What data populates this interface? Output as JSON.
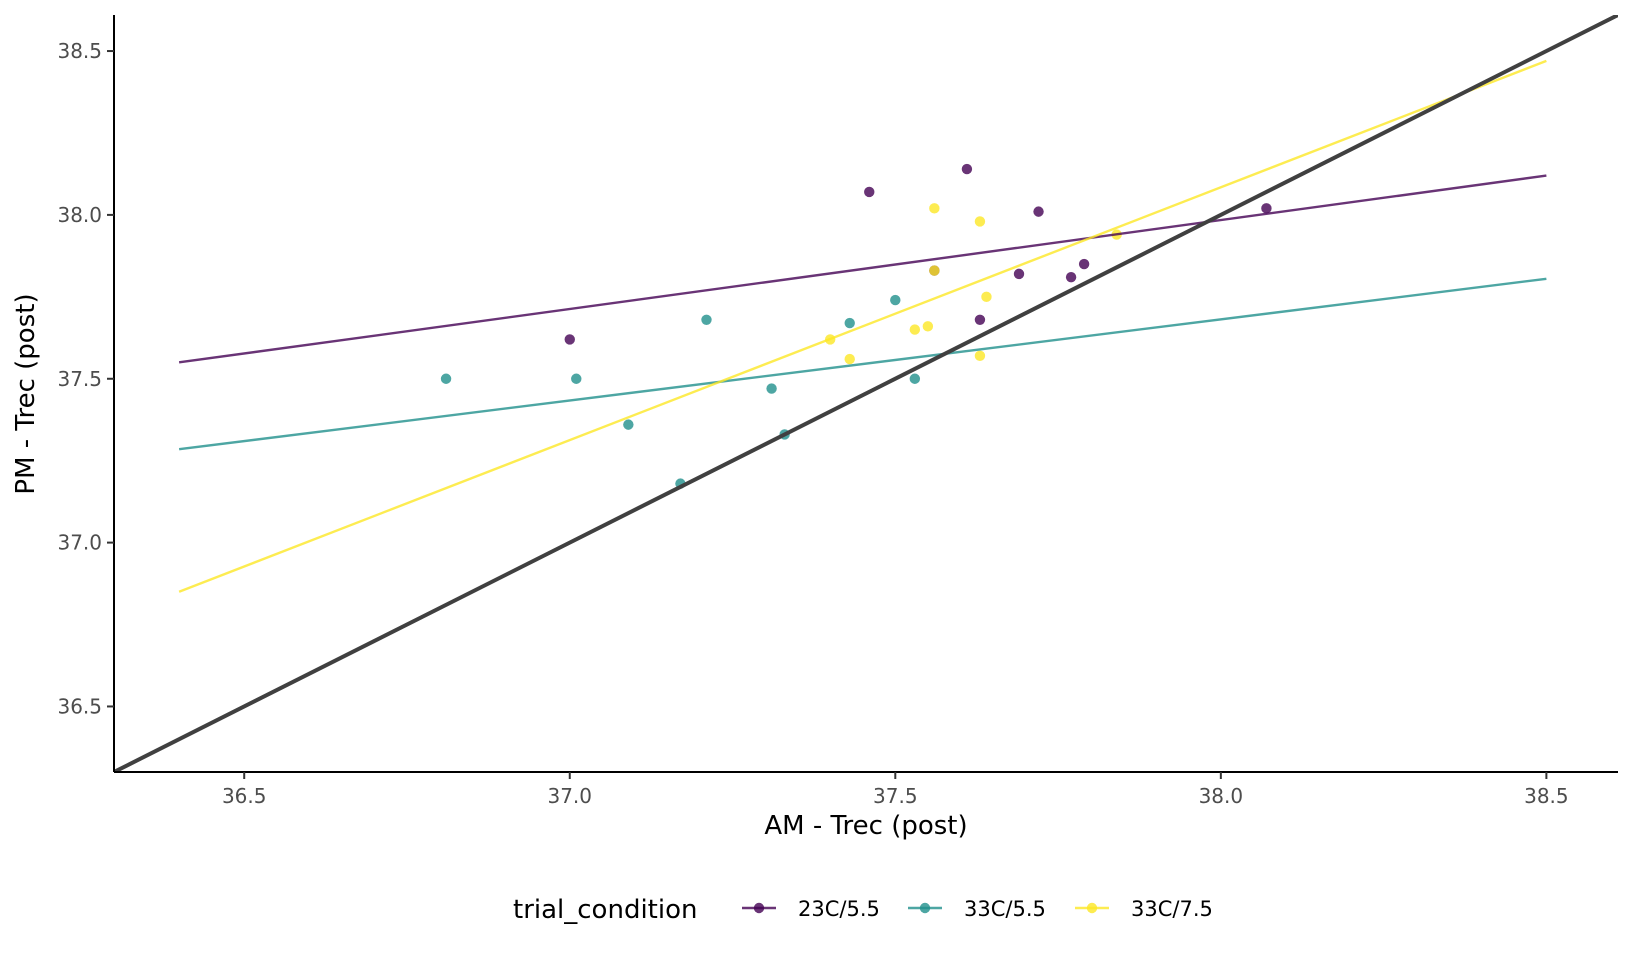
{
  "chart_data": {
    "type": "scatter",
    "xlabel": "AM - Trec (post)",
    "ylabel": "PM - Trec (post)",
    "xlim": [
      36.3,
      38.61
    ],
    "ylim": [
      36.3,
      38.61
    ],
    "x_ticks": [
      "36.5",
      "37.0",
      "37.5",
      "38.0",
      "38.5"
    ],
    "y_ticks": [
      "36.5",
      "37.0",
      "37.5",
      "38.0",
      "38.5"
    ],
    "grid": false,
    "legend": {
      "title": "trial_condition",
      "position": "bottom",
      "labels": [
        "23C/5.5",
        "33C/5.5",
        "33C/7.5"
      ]
    },
    "identity_line": {
      "slope": 1,
      "intercept": 0,
      "color": "#404040"
    },
    "series": [
      {
        "name": "23C/5.5",
        "color": "#440154",
        "points": [
          [
            37.0,
            37.62
          ],
          [
            37.46,
            38.07
          ],
          [
            37.61,
            38.14
          ],
          [
            37.56,
            37.83
          ],
          [
            37.63,
            37.68
          ],
          [
            37.69,
            37.82
          ],
          [
            37.72,
            38.01
          ],
          [
            37.77,
            37.81
          ],
          [
            37.79,
            37.85
          ],
          [
            38.07,
            38.02
          ]
        ],
        "fit": {
          "x": [
            36.4,
            38.5
          ],
          "y": [
            37.55,
            38.12
          ]
        }
      },
      {
        "name": "33C/5.5",
        "color": "#21908C",
        "points": [
          [
            36.81,
            37.5
          ],
          [
            37.01,
            37.5
          ],
          [
            37.09,
            37.36
          ],
          [
            37.17,
            37.18
          ],
          [
            37.21,
            37.68
          ],
          [
            37.31,
            37.47
          ],
          [
            37.33,
            37.33
          ],
          [
            37.43,
            37.67
          ],
          [
            37.5,
            37.74
          ],
          [
            37.53,
            37.5
          ]
        ],
        "fit": {
          "x": [
            36.4,
            38.5
          ],
          "y": [
            37.285,
            37.805
          ]
        }
      },
      {
        "name": "33C/7.5",
        "color": "#FDE725",
        "points": [
          [
            37.4,
            37.62
          ],
          [
            37.43,
            37.56
          ],
          [
            37.53,
            37.65
          ],
          [
            37.55,
            37.66
          ],
          [
            37.56,
            37.83
          ],
          [
            37.56,
            38.02
          ],
          [
            37.63,
            37.98
          ],
          [
            37.63,
            37.57
          ],
          [
            37.64,
            37.75
          ],
          [
            37.84,
            37.94
          ]
        ],
        "fit": {
          "x": [
            36.4,
            38.5
          ],
          "y": [
            36.85,
            38.47
          ]
        }
      }
    ]
  }
}
